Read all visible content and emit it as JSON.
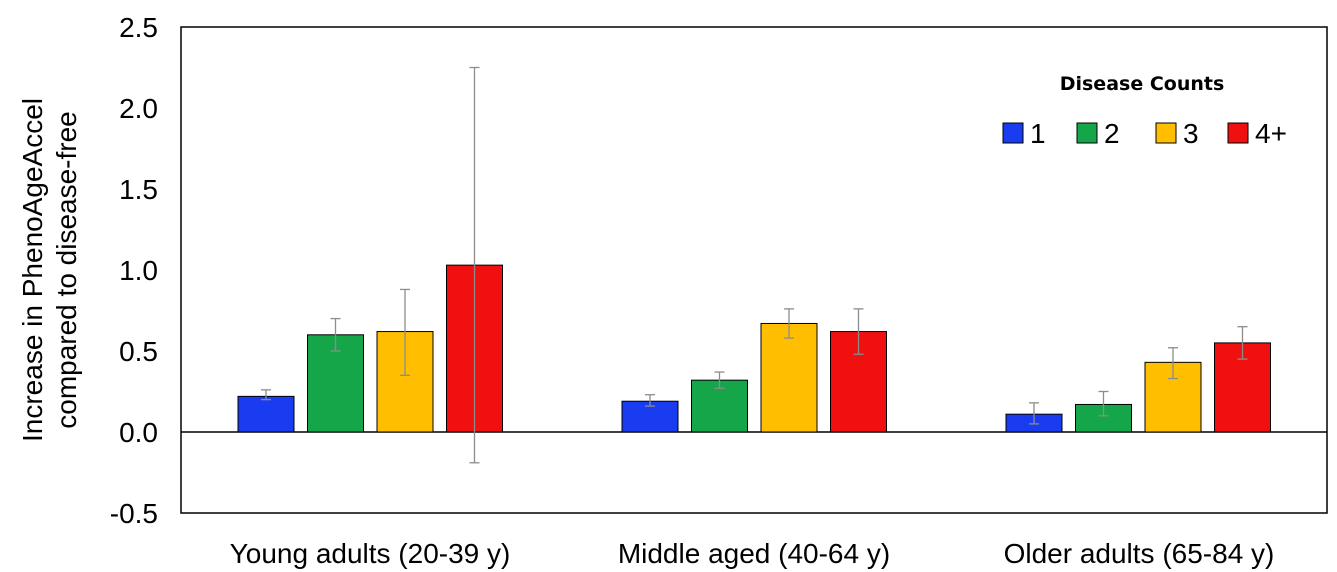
{
  "chart_data": {
    "type": "bar",
    "title": "",
    "xlabel": "",
    "ylabel_lines": [
      "Increase in PhenoAgeAccel",
      "compared to disease-free"
    ],
    "ylim": [
      -0.5,
      2.5
    ],
    "yticks": [
      "-0.5",
      "0.0",
      "0.5",
      "1.0",
      "1.5",
      "2.0",
      "2.5"
    ],
    "grid": false,
    "legend": {
      "title": "Disease Counts",
      "position": "top-right"
    },
    "categories": [
      "Young adults (20-39 y)",
      "Middle aged (40-64 y)",
      "Older adults (65-84 y)"
    ],
    "series": [
      {
        "name": "1",
        "color": "#1a3cf0",
        "values": [
          0.22,
          0.19,
          0.11
        ],
        "err_low": [
          0.2,
          0.16,
          0.05
        ],
        "err_high": [
          0.26,
          0.23,
          0.18
        ]
      },
      {
        "name": "2",
        "color": "#16a64a",
        "values": [
          0.6,
          0.32,
          0.17
        ],
        "err_low": [
          0.5,
          0.27,
          0.1
        ],
        "err_high": [
          0.7,
          0.37,
          0.25
        ]
      },
      {
        "name": "3",
        "color": "#ffbf00",
        "values": [
          0.62,
          0.67,
          0.43
        ],
        "err_low": [
          0.35,
          0.58,
          0.33
        ],
        "err_high": [
          0.88,
          0.76,
          0.52
        ]
      },
      {
        "name": "4+",
        "color": "#f01010",
        "values": [
          1.03,
          0.62,
          0.55
        ],
        "err_low": [
          -0.19,
          0.48,
          0.45
        ],
        "err_high": [
          2.25,
          0.76,
          0.65
        ]
      }
    ]
  }
}
